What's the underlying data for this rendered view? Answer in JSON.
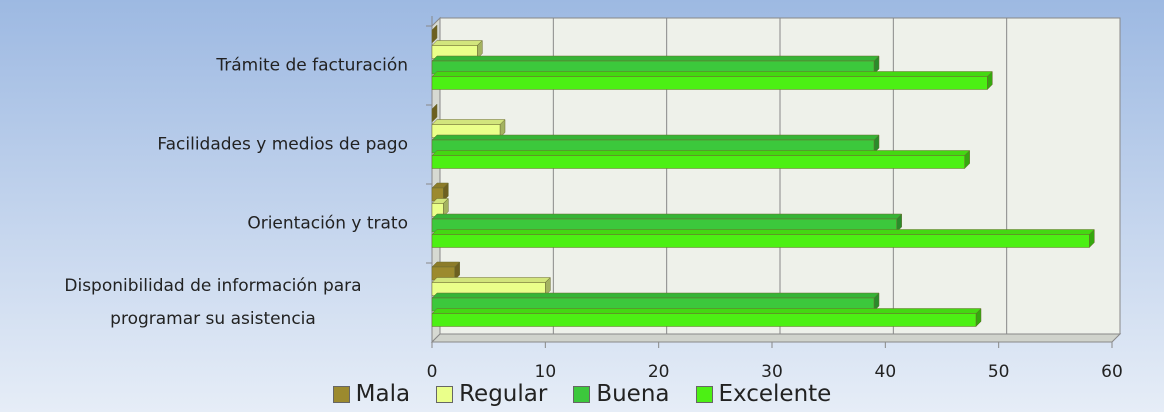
{
  "chart_data": {
    "type": "bar",
    "orientation": "horizontal",
    "categories": [
      "Trámite de facturación",
      "Facilidades y medios de pago",
      "Orientación y trato",
      "Disponibilidad de información para programar su asistencia"
    ],
    "series": [
      {
        "name": "Mala",
        "color": "#9c8a2e",
        "values": [
          0,
          0,
          1,
          2
        ]
      },
      {
        "name": "Regular",
        "color": "#eaff8a",
        "values": [
          4,
          6,
          1,
          10
        ]
      },
      {
        "name": "Buena",
        "color": "#3cc83c",
        "values": [
          39,
          39,
          41,
          39
        ]
      },
      {
        "name": "Excelente",
        "color": "#4cf014",
        "values": [
          49,
          47,
          58,
          48
        ]
      }
    ],
    "xlim": [
      0,
      60
    ],
    "xticks": [
      0,
      10,
      20,
      30,
      40,
      50,
      60
    ],
    "grid": true,
    "legend": "bottom"
  }
}
